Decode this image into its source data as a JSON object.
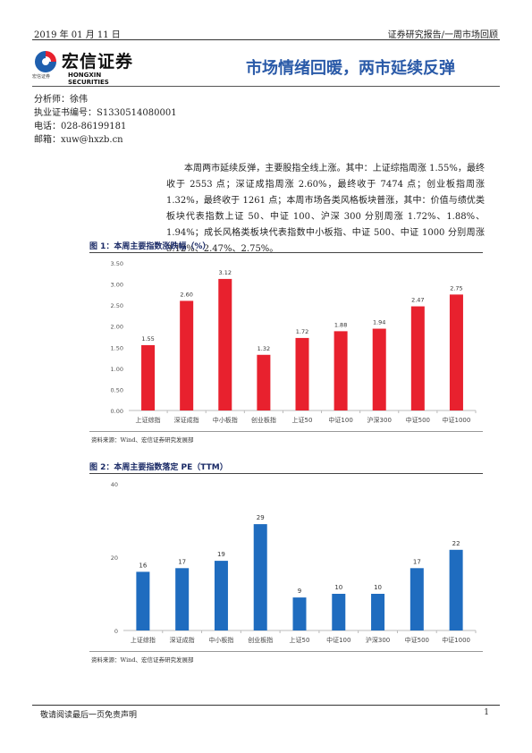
{
  "header": {
    "date": "2019 年 01 月 11 日",
    "report_type": "证券研究报告/一周市场回顾",
    "logo_text": "宏信证券",
    "logo_en": "HONGXIN SECURITIES",
    "logo_small": "宏信证券",
    "title": "市场情绪回暖，两市延续反弹"
  },
  "analyst": {
    "name": "分析师：徐伟",
    "license": "执业证书编号：S1330514080001",
    "phone": "电话：028-86199181",
    "email": "邮箱：xuw@hxzb.cn"
  },
  "body": {
    "paragraph": "本周两市延续反弹，主要股指全线上涨。其中：上证综指周涨 1.55%，最终收于 2553 点；深证成指周涨 2.60%，最终收于 7474 点；创业板指周涨 1.32%，最终收于 1261 点；本周市场各类风格板块普涨，其中：价值与绩优类板块代表指数上证 50、中证 100、沪深 300 分别周涨 1.72%、1.88%、1.94%；成长风格类板块代表指数中小板指、中证 500、中证 1000 分别周涨 3.12%、2.47%、2.75%。"
  },
  "figure1": {
    "title": "图 1：本周主要指数涨跌幅（%）",
    "source": "资料来源：Wind、宏信证券研究发展部"
  },
  "figure2": {
    "title": "图 2：本周主要指数落定 PE（TTM）",
    "source": "资料来源：Wind、宏信证券研究发展部"
  },
  "footer": {
    "disclaimer": "敬请阅读最后一页免责声明",
    "page": "1"
  },
  "colors": {
    "bar_red": "#e8212e",
    "bar_blue": "#1f6cbf",
    "title_blue": "#2a5aa8"
  },
  "chart_data": [
    {
      "type": "bar",
      "title": "图 1：本周主要指数涨跌幅（%）",
      "categories": [
        "上证综指",
        "深证成指",
        "中小板指",
        "创业板指",
        "上证50",
        "中证100",
        "沪深300",
        "中证500",
        "中证1000"
      ],
      "values": [
        1.55,
        2.6,
        3.12,
        1.32,
        1.72,
        1.88,
        1.94,
        2.47,
        2.75
      ],
      "value_labels": [
        "1.55",
        "2.60",
        "3.12",
        "1.32",
        "1.72",
        "1.88",
        "1.94",
        "2.47",
        "2.75"
      ],
      "ylim": [
        0,
        3.5
      ],
      "yticks": [
        "0.00",
        "0.50",
        "1.00",
        "1.50",
        "2.00",
        "2.50",
        "3.00",
        "3.50"
      ],
      "xlabel": "",
      "ylabel": "",
      "grid": false,
      "color": "#e8212e"
    },
    {
      "type": "bar",
      "title": "图 2：本周主要指数落定 PE（TTM）",
      "categories": [
        "上证综指",
        "深证成指",
        "中小板指",
        "创业板指",
        "上证50",
        "中证100",
        "沪深300",
        "中证500",
        "中证1000"
      ],
      "values": [
        16,
        17,
        19,
        29,
        9,
        10,
        10,
        17,
        22
      ],
      "value_labels": [
        "16",
        "17",
        "19",
        "29",
        "9",
        "10",
        "10",
        "17",
        "22"
      ],
      "ylim": [
        0,
        40
      ],
      "yticks": [
        "0",
        "20",
        "40"
      ],
      "xlabel": "",
      "ylabel": "",
      "grid": false,
      "color": "#1f6cbf"
    }
  ]
}
